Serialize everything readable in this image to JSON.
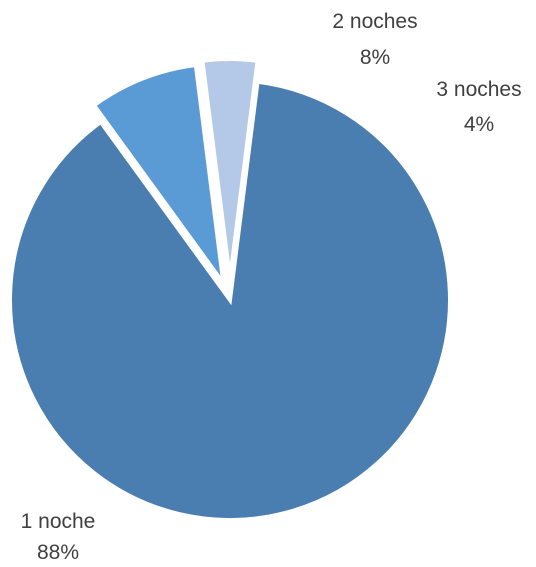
{
  "chart_data": {
    "type": "pie",
    "title": "",
    "legend": "none",
    "slices": [
      {
        "label": "1 noche",
        "percent_label": "88%",
        "value": 88,
        "color": "#4a7eb0"
      },
      {
        "label": "2 noches",
        "percent_label": "8%",
        "value": 8,
        "color": "#5b9bd5"
      },
      {
        "label": "3 noches",
        "percent_label": "4%",
        "value": 4,
        "color": "#b4c9e8"
      }
    ]
  }
}
